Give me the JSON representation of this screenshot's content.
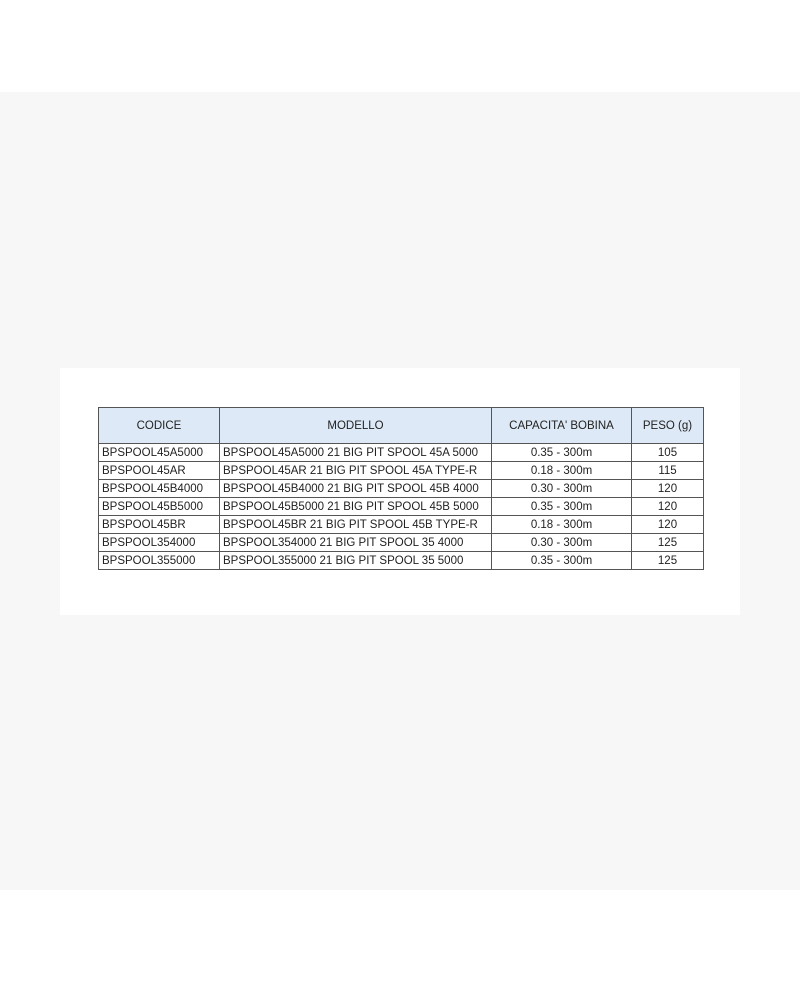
{
  "table": {
    "headers": [
      "CODICE",
      "MODELLO",
      "CAPACITA' BOBINA",
      "PESO (g)"
    ],
    "rows": [
      [
        "BPSPOOL45A5000",
        "BPSPOOL45A5000  21 BIG PIT SPOOL 45A 5000",
        "0.35 - 300m",
        "105"
      ],
      [
        "BPSPOOL45AR",
        "BPSPOOL45AR  21 BIG PIT SPOOL 45A TYPE-R",
        "0.18 - 300m",
        "115"
      ],
      [
        "BPSPOOL45B4000",
        "BPSPOOL45B4000  21 BIG PIT SPOOL 45B 4000",
        "0.30 - 300m",
        "120"
      ],
      [
        "BPSPOOL45B5000",
        "BPSPOOL45B5000  21 BIG PIT SPOOL 45B 5000",
        "0.35 - 300m",
        "120"
      ],
      [
        "BPSPOOL45BR",
        "BPSPOOL45BR  21 BIG PIT SPOOL 45B TYPE-R",
        "0.18 - 300m",
        "120"
      ],
      [
        "BPSPOOL354000",
        "BPSPOOL354000  21 BIG PIT SPOOL 35 4000",
        "0.30 - 300m",
        "125"
      ],
      [
        "BPSPOOL355000",
        "BPSPOOL355000  21 BIG PIT SPOOL 35 5000",
        "0.35 - 300m",
        "125"
      ]
    ]
  },
  "colors": {
    "header_bg": "#dde9f6",
    "border": "#555555"
  }
}
